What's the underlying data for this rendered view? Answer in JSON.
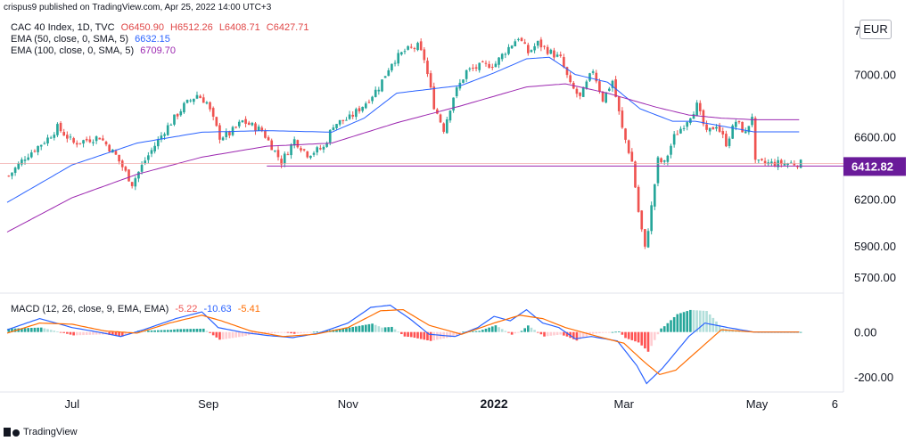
{
  "header": {
    "published": "crispus9 published on TradingView.com, Apr 25, 2022 14:00 UTC+3",
    "symbol": "CAC 40 Index, 1D, TVC",
    "ohlc": {
      "open": "O6450.90",
      "high": "H6512.26",
      "low": "L6408.71",
      "close": "C6427.71"
    },
    "ema1_label": "EMA (50, close, 0, SMA, 5)",
    "ema1_value": "6632.15",
    "ema2_label": "EMA (100, close, 0, SMA, 5)",
    "ema2_value": "6709.70"
  },
  "macd_header": {
    "label": "MACD (12, 26, close, 9, EMA, EMA)",
    "hist": "-5.22",
    "macd": "-10.63",
    "signal": "-5.41"
  },
  "currency": "EUR",
  "footer": {
    "logo_text": "TradingView"
  },
  "colors": {
    "up": "#26a69a",
    "down": "#ef5350",
    "ema50": "#2962ff",
    "ema100": "#9c27b0",
    "support": "#9c27b0",
    "price_label": "#6a1b9a",
    "macd": "#2962ff",
    "signal": "#ff6d00",
    "hist_up_strong": "#26a69a",
    "hist_up_weak": "#b2dfdb",
    "hist_down_strong": "#ff5252",
    "hist_down_weak": "#ffcdd2"
  },
  "chart_data": {
    "type": "line",
    "title": "CAC 40 Index, 1D, TVC",
    "price_axis_ticks": [
      6200.0,
      6600.0,
      7000.0,
      5900.0,
      5700.0
    ],
    "price_axis_tick_labels": [
      "6200.00",
      "6600.00",
      "7000.00",
      "5900.00",
      "5700.00"
    ],
    "top_partial_tick_label": "7",
    "ylim": [
      5650,
      7420
    ],
    "macd_axis_ticks": [
      0,
      -200
    ],
    "macd_axis_tick_labels": [
      "0.00",
      "-200.00"
    ],
    "macd_ylim": [
      -260,
      150
    ],
    "x_labels": [
      {
        "label": "Jul",
        "bar": 20
      },
      {
        "label": "Sep",
        "bar": 62
      },
      {
        "label": "Nov",
        "bar": 105
      },
      {
        "label": "2022",
        "bar": 150
      },
      {
        "label": "Mar",
        "bar": 190
      },
      {
        "label": "May",
        "bar": 231
      },
      {
        "label": "6",
        "bar": 255
      }
    ],
    "bar_count": 245,
    "current_price": 6412.82,
    "current_price_label": "6412.82",
    "support_level": 6412.82,
    "support_start_bar": 80,
    "price_anchors": [
      [
        0,
        6350
      ],
      [
        5,
        6470
      ],
      [
        12,
        6590
      ],
      [
        15,
        6660
      ],
      [
        20,
        6560
      ],
      [
        28,
        6600
      ],
      [
        33,
        6480
      ],
      [
        38,
        6300
      ],
      [
        42,
        6450
      ],
      [
        48,
        6640
      ],
      [
        54,
        6800
      ],
      [
        58,
        6870
      ],
      [
        61,
        6820
      ],
      [
        65,
        6600
      ],
      [
        68,
        6620
      ],
      [
        72,
        6700
      ],
      [
        78,
        6640
      ],
      [
        84,
        6440
      ],
      [
        88,
        6580
      ],
      [
        92,
        6490
      ],
      [
        97,
        6530
      ],
      [
        100,
        6680
      ],
      [
        105,
        6720
      ],
      [
        110,
        6820
      ],
      [
        114,
        6920
      ],
      [
        118,
        7080
      ],
      [
        122,
        7150
      ],
      [
        126,
        7180
      ],
      [
        128,
        7100
      ],
      [
        131,
        6800
      ],
      [
        134,
        6650
      ],
      [
        137,
        6860
      ],
      [
        141,
        7020
      ],
      [
        145,
        7050
      ],
      [
        150,
        7070
      ],
      [
        153,
        7150
      ],
      [
        157,
        7240
      ],
      [
        160,
        7140
      ],
      [
        163,
        7200
      ],
      [
        167,
        7140
      ],
      [
        170,
        7100
      ],
      [
        173,
        6930
      ],
      [
        176,
        6850
      ],
      [
        180,
        7030
      ],
      [
        183,
        6840
      ],
      [
        186,
        6960
      ],
      [
        189,
        6650
      ],
      [
        192,
        6440
      ],
      [
        194,
        6120
      ],
      [
        196,
        5880
      ],
      [
        198,
        6150
      ],
      [
        200,
        6450
      ],
      [
        202,
        6430
      ],
      [
        205,
        6600
      ],
      [
        208,
        6680
      ],
      [
        212,
        6800
      ],
      [
        215,
        6620
      ],
      [
        218,
        6680
      ],
      [
        221,
        6560
      ],
      [
        224,
        6700
      ],
      [
        227,
        6620
      ],
      [
        229,
        6740
      ],
      [
        230,
        6430
      ]
    ],
    "ema50_anchors": [
      [
        0,
        6180
      ],
      [
        20,
        6420
      ],
      [
        40,
        6560
      ],
      [
        60,
        6630
      ],
      [
        80,
        6640
      ],
      [
        100,
        6630
      ],
      [
        110,
        6720
      ],
      [
        120,
        6880
      ],
      [
        140,
        6930
      ],
      [
        150,
        7010
      ],
      [
        160,
        7100
      ],
      [
        167,
        7110
      ],
      [
        175,
        7000
      ],
      [
        185,
        6950
      ],
      [
        195,
        6780
      ],
      [
        205,
        6700
      ],
      [
        212,
        6700
      ],
      [
        220,
        6670
      ],
      [
        230,
        6632
      ]
    ],
    "ema100_anchors": [
      [
        0,
        5990
      ],
      [
        20,
        6210
      ],
      [
        40,
        6360
      ],
      [
        60,
        6470
      ],
      [
        80,
        6540
      ],
      [
        100,
        6560
      ],
      [
        120,
        6690
      ],
      [
        140,
        6800
      ],
      [
        160,
        6920
      ],
      [
        172,
        6940
      ],
      [
        185,
        6880
      ],
      [
        200,
        6790
      ],
      [
        210,
        6740
      ],
      [
        220,
        6720
      ],
      [
        230,
        6710
      ]
    ],
    "macd_anchors": [
      [
        0,
        10
      ],
      [
        10,
        60
      ],
      [
        20,
        20
      ],
      [
        28,
        0
      ],
      [
        35,
        -20
      ],
      [
        42,
        10
      ],
      [
        52,
        60
      ],
      [
        60,
        90
      ],
      [
        65,
        20
      ],
      [
        72,
        0
      ],
      [
        80,
        -15
      ],
      [
        88,
        -25
      ],
      [
        96,
        -5
      ],
      [
        105,
        40
      ],
      [
        112,
        110
      ],
      [
        118,
        120
      ],
      [
        124,
        60
      ],
      [
        130,
        -10
      ],
      [
        138,
        -20
      ],
      [
        145,
        20
      ],
      [
        150,
        70
      ],
      [
        155,
        50
      ],
      [
        160,
        100
      ],
      [
        165,
        40
      ],
      [
        170,
        20
      ],
      [
        175,
        -30
      ],
      [
        180,
        -20
      ],
      [
        188,
        -40
      ],
      [
        194,
        -150
      ],
      [
        197,
        -230
      ],
      [
        202,
        -160
      ],
      [
        210,
        -20
      ],
      [
        215,
        40
      ],
      [
        222,
        20
      ],
      [
        230,
        0
      ]
    ],
    "signal_anchors": [
      [
        0,
        -5
      ],
      [
        10,
        40
      ],
      [
        20,
        35
      ],
      [
        30,
        5
      ],
      [
        40,
        -5
      ],
      [
        50,
        40
      ],
      [
        60,
        75
      ],
      [
        66,
        50
      ],
      [
        75,
        5
      ],
      [
        85,
        -20
      ],
      [
        95,
        -10
      ],
      [
        105,
        20
      ],
      [
        115,
        95
      ],
      [
        122,
        100
      ],
      [
        130,
        30
      ],
      [
        140,
        -10
      ],
      [
        150,
        40
      ],
      [
        158,
        75
      ],
      [
        165,
        60
      ],
      [
        172,
        20
      ],
      [
        182,
        -20
      ],
      [
        190,
        -50
      ],
      [
        196,
        -130
      ],
      [
        201,
        -190
      ],
      [
        206,
        -170
      ],
      [
        213,
        -80
      ],
      [
        220,
        10
      ],
      [
        230,
        0
      ]
    ]
  }
}
